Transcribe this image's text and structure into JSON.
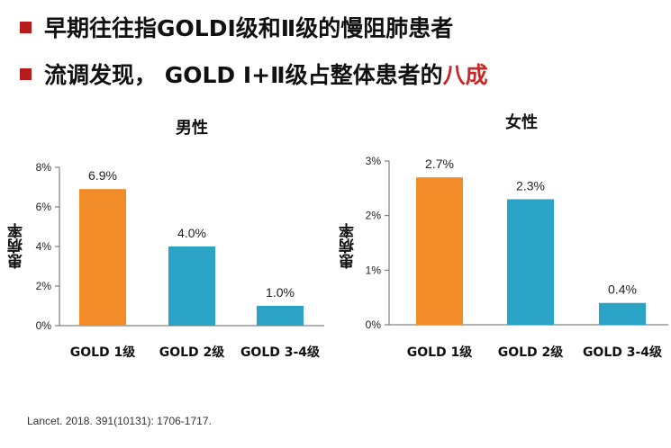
{
  "bullets": [
    {
      "text": "早期往往指GOLDⅠ级和Ⅱ级的慢阻肺患者",
      "accent": ""
    },
    {
      "text": "流调发现， GOLD Ⅰ+Ⅱ级占整体患者的",
      "accent": "八成"
    }
  ],
  "colors": {
    "accent": "#c62828",
    "bullet": "#b71c1c",
    "orange": "#f28c28",
    "blue": "#2ba3c4"
  },
  "chart_data": [
    {
      "type": "bar",
      "title": "男性",
      "ylabel": "患病率",
      "categories": [
        "GOLD 1级",
        "GOLD 2级",
        "GOLD 3-4级"
      ],
      "values": [
        6.9,
        4.0,
        1.0
      ],
      "value_labels": [
        "6.9%",
        "4.0%",
        "1.0%"
      ],
      "bar_colors": [
        "#f28c28",
        "#2ba3c4",
        "#2ba3c4"
      ],
      "ylim": [
        0,
        8
      ],
      "yticks": [
        0,
        2,
        4,
        6,
        8
      ],
      "ytick_labels": [
        "0%",
        "2%",
        "4%",
        "6%",
        "8%"
      ]
    },
    {
      "type": "bar",
      "title": "女性",
      "ylabel": "患病率",
      "categories": [
        "GOLD 1级",
        "GOLD 2级",
        "GOLD 3-4级"
      ],
      "values": [
        2.7,
        2.3,
        0.4
      ],
      "value_labels": [
        "2.7%",
        "2.3%",
        "0.4%"
      ],
      "bar_colors": [
        "#f28c28",
        "#2ba3c4",
        "#2ba3c4"
      ],
      "ylim": [
        0,
        3
      ],
      "yticks": [
        0,
        1,
        2,
        3
      ],
      "ytick_labels": [
        "0%",
        "1%",
        "2%",
        "3%"
      ]
    }
  ],
  "citation": "Lancet. 2018. 391(10131): 1706-1717."
}
